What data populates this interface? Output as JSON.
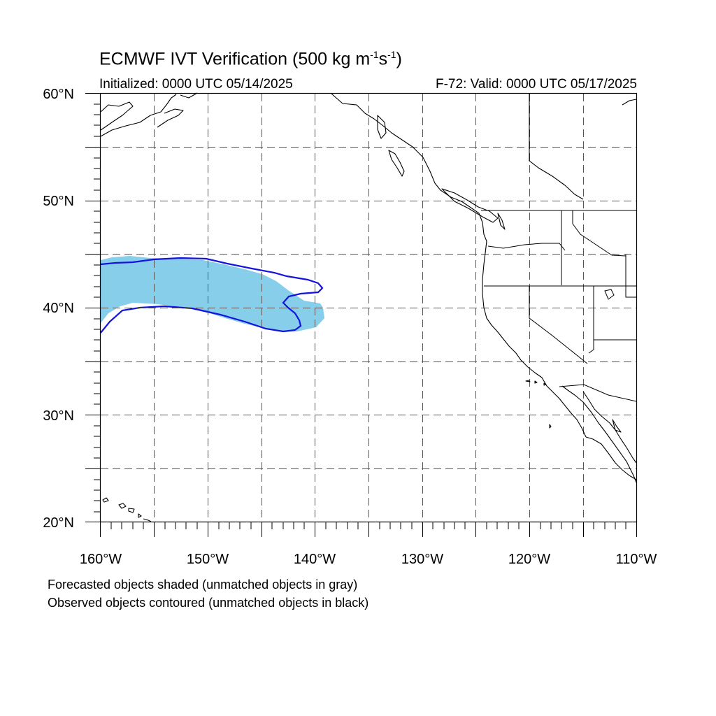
{
  "title": {
    "main": "ECMWF IVT Verification (500 kg m",
    "sup1": "-1",
    "mid": "s",
    "sup2": "-1",
    "end": ")"
  },
  "subtitle": {
    "initialized": "Initialized: 0000 UTC 05/14/2025",
    "valid": "F-72: Valid: 0000 UTC 05/17/2025"
  },
  "map": {
    "lat_range": [
      20,
      60
    ],
    "lon_range": [
      -160,
      -110
    ],
    "lat_labels": [
      "60°N",
      "50°N",
      "40°N",
      "30°N",
      "20°N"
    ],
    "lon_labels": [
      "160°W",
      "150°W",
      "140°W",
      "130°W",
      "120°W",
      "110°W"
    ],
    "grid": "dashed every 5 degrees",
    "forecast_object_color": "#87ceeb",
    "observed_contour_color": "#1414dc"
  },
  "notes": {
    "line1": "Forecasted objects shaded (unmatched objects in gray)",
    "line2": "Observed objects contoured (unmatched objects in black)"
  }
}
